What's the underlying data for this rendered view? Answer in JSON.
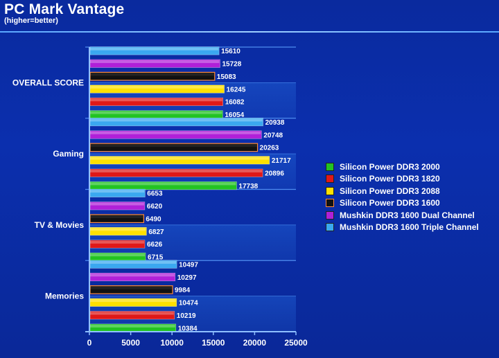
{
  "chart_data": {
    "type": "bar",
    "orientation": "horizontal",
    "title": "PC Mark Vantage",
    "subtitle": "(higher=better)",
    "categories": [
      "OVERALL SCORE",
      "Gaming",
      "TV & Movies",
      "Memories"
    ],
    "series": [
      {
        "name": "Silicon Power DDR3 2000",
        "color": "#22c322",
        "values": [
          16054,
          17738,
          6715,
          10384
        ]
      },
      {
        "name": "Silicon Power DDR3 1820",
        "color": "#e01818",
        "values": [
          16082,
          20896,
          6626,
          10219
        ]
      },
      {
        "name": "Silicon Power DDR3 2088",
        "color": "#ffe000",
        "values": [
          16245,
          21717,
          6827,
          10474
        ]
      },
      {
        "name": "Silicon Power DDR3 1600",
        "color": "#111111",
        "values": [
          15083,
          20263,
          6490,
          9984
        ]
      },
      {
        "name": "Mushkin DDR3 1600 Dual Channel",
        "color": "#b020d8",
        "values": [
          15728,
          20748,
          6620,
          10297
        ]
      },
      {
        "name": "Mushkin DDR3 1600 Triple Channel",
        "color": "#3aa8f0",
        "values": [
          15610,
          20938,
          6653,
          10497
        ]
      }
    ],
    "xlim": [
      0,
      25000
    ],
    "xticks": [
      "0",
      "5000",
      "10000",
      "15000",
      "20000",
      "25000"
    ],
    "grid": true,
    "legend_position": "right"
  }
}
